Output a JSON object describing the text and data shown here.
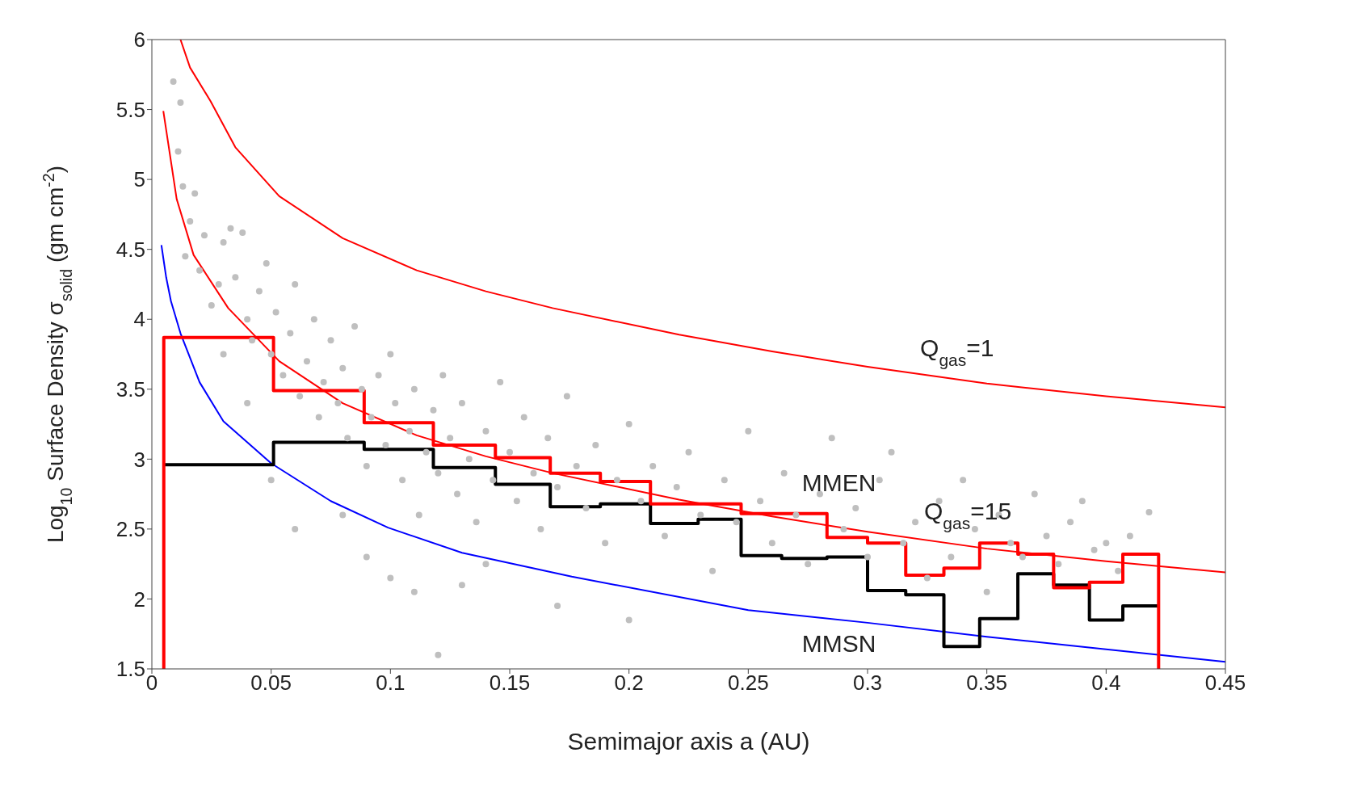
{
  "chart_data": {
    "type": "line",
    "xlabel": "Semimajor axis a (AU)",
    "ylabel": "Log$_{10}$ Surface Density σ$_{solid}$ (gm cm$^{-2}$)",
    "xlim": [
      0,
      0.45
    ],
    "xticks": [
      0,
      0.05,
      0.1,
      0.15,
      0.2,
      0.25,
      0.3,
      0.35,
      0.4,
      0.45
    ],
    "ylim": [
      1.5,
      6
    ],
    "yticks": [
      1.5,
      2,
      2.5,
      3,
      3.5,
      4,
      4.5,
      5,
      5.5,
      6
    ],
    "series": [
      {
        "type": "scatter",
        "color": "#bfbfbf",
        "marker": "circle",
        "x": [
          0.009,
          0.012,
          0.011,
          0.013,
          0.016,
          0.018,
          0.014,
          0.02,
          0.022,
          0.025,
          0.028,
          0.03,
          0.033,
          0.035,
          0.038,
          0.04,
          0.042,
          0.045,
          0.048,
          0.05,
          0.052,
          0.055,
          0.058,
          0.06,
          0.062,
          0.065,
          0.068,
          0.07,
          0.072,
          0.075,
          0.078,
          0.08,
          0.082,
          0.085,
          0.088,
          0.09,
          0.092,
          0.095,
          0.098,
          0.1,
          0.102,
          0.105,
          0.108,
          0.11,
          0.112,
          0.115,
          0.118,
          0.12,
          0.122,
          0.125,
          0.128,
          0.13,
          0.133,
          0.136,
          0.14,
          0.143,
          0.146,
          0.15,
          0.153,
          0.156,
          0.16,
          0.163,
          0.166,
          0.17,
          0.174,
          0.178,
          0.182,
          0.186,
          0.19,
          0.195,
          0.2,
          0.205,
          0.21,
          0.215,
          0.22,
          0.225,
          0.23,
          0.235,
          0.24,
          0.245,
          0.25,
          0.255,
          0.26,
          0.265,
          0.27,
          0.275,
          0.28,
          0.285,
          0.29,
          0.295,
          0.3,
          0.305,
          0.31,
          0.315,
          0.32,
          0.325,
          0.33,
          0.335,
          0.34,
          0.345,
          0.35,
          0.355,
          0.36,
          0.365,
          0.37,
          0.375,
          0.38,
          0.385,
          0.39,
          0.395,
          0.4,
          0.405,
          0.41,
          0.418,
          0.06,
          0.08,
          0.1,
          0.11,
          0.13,
          0.17,
          0.2,
          0.09,
          0.14,
          0.05,
          0.03,
          0.04,
          0.12
        ],
        "values": [
          5.7,
          5.55,
          5.2,
          4.95,
          4.7,
          4.9,
          4.45,
          4.35,
          4.6,
          4.1,
          4.25,
          4.55,
          4.65,
          4.3,
          4.62,
          4.0,
          3.85,
          4.2,
          4.4,
          3.75,
          4.05,
          3.6,
          3.9,
          4.25,
          3.45,
          3.7,
          4.0,
          3.3,
          3.55,
          3.85,
          3.4,
          3.65,
          3.15,
          3.95,
          3.5,
          2.95,
          3.3,
          3.6,
          3.1,
          3.75,
          3.4,
          2.85,
          3.2,
          3.5,
          2.6,
          3.05,
          3.35,
          2.9,
          3.6,
          3.15,
          2.75,
          3.4,
          3.0,
          2.55,
          3.2,
          2.85,
          3.55,
          3.05,
          2.7,
          3.3,
          2.9,
          2.5,
          3.15,
          2.8,
          3.45,
          2.95,
          2.65,
          3.1,
          2.4,
          2.85,
          3.25,
          2.7,
          2.95,
          2.45,
          2.8,
          3.05,
          2.6,
          2.2,
          2.85,
          2.55,
          3.2,
          2.7,
          2.4,
          2.9,
          2.6,
          2.25,
          2.75,
          3.15,
          2.5,
          2.65,
          2.3,
          2.85,
          3.05,
          2.4,
          2.55,
          2.15,
          2.7,
          2.3,
          2.85,
          2.5,
          2.05,
          2.6,
          2.4,
          2.3,
          2.75,
          2.45,
          2.25,
          2.55,
          2.7,
          2.35,
          2.4,
          2.2,
          2.45,
          2.62,
          2.5,
          2.6,
          2.15,
          2.05,
          2.1,
          1.95,
          1.85,
          2.3,
          2.25,
          2.85,
          3.75,
          3.4,
          1.6
        ]
      },
      {
        "color": "#ff0000",
        "x": [
          0.012,
          0.016,
          0.0246,
          0.035,
          0.0534,
          0.08,
          0.111,
          0.14,
          0.168,
          0.221,
          0.26,
          0.3,
          0.35,
          0.4,
          0.45
        ],
        "values": [
          6.0,
          5.8,
          5.56,
          5.23,
          4.88,
          4.58,
          4.35,
          4.2,
          4.08,
          3.89,
          3.77,
          3.66,
          3.54,
          3.45,
          3.37
        ]
      },
      {
        "color": "#ff0000",
        "x": [
          0.0048,
          0.0104,
          0.0175,
          0.032,
          0.0534,
          0.08,
          0.111,
          0.14,
          0.168,
          0.221,
          0.26,
          0.3,
          0.35,
          0.4,
          0.45
        ],
        "values": [
          5.49,
          4.86,
          4.46,
          4.08,
          3.7,
          3.4,
          3.17,
          3.02,
          2.9,
          2.71,
          2.59,
          2.48,
          2.36,
          2.27,
          2.19
        ]
      },
      {
        "color": "#0000ff",
        "x": [
          0.004,
          0.006,
          0.008,
          0.012,
          0.02,
          0.03,
          0.05,
          0.075,
          0.099,
          0.13,
          0.176,
          0.25,
          0.3,
          0.35,
          0.4,
          0.45
        ],
        "values": [
          4.53,
          4.3,
          4.13,
          3.9,
          3.55,
          3.27,
          2.97,
          2.7,
          2.51,
          2.33,
          2.16,
          1.92,
          1.83,
          1.73,
          1.64,
          1.55
        ]
      },
      {
        "type": "step",
        "color": "#000000",
        "x": [
          0.005,
          0.051,
          0.089,
          0.118,
          0.144,
          0.167,
          0.188,
          0.209,
          0.229,
          0.247,
          0.264,
          0.283,
          0.3,
          0.316,
          0.332,
          0.347,
          0.363,
          0.378,
          0.393,
          0.407,
          0.422
        ],
        "values": [
          2.96,
          3.12,
          3.07,
          2.94,
          2.82,
          2.66,
          2.68,
          2.54,
          2.57,
          2.31,
          2.29,
          2.3,
          2.06,
          2.03,
          1.66,
          1.86,
          2.18,
          2.1,
          1.85,
          1.95,
          1.95
        ]
      },
      {
        "type": "step",
        "color": "#ff0000",
        "x": [
          0.005,
          0.005,
          0.051,
          0.089,
          0.118,
          0.144,
          0.167,
          0.188,
          0.209,
          0.247,
          0.283,
          0.3,
          0.316,
          0.332,
          0.347,
          0.363,
          0.378,
          0.393,
          0.407,
          0.422,
          0.422
        ],
        "values": [
          1.5,
          3.87,
          3.49,
          3.26,
          3.1,
          3.01,
          2.9,
          2.84,
          2.68,
          2.61,
          2.44,
          2.4,
          2.17,
          2.22,
          2.4,
          2.32,
          2.08,
          2.12,
          2.32,
          2.32,
          1.5
        ]
      }
    ],
    "annotations": [
      "Q$_{gas}$=1",
      "MMEN",
      "Q$_{gas}$=15",
      "MMSN"
    ]
  }
}
